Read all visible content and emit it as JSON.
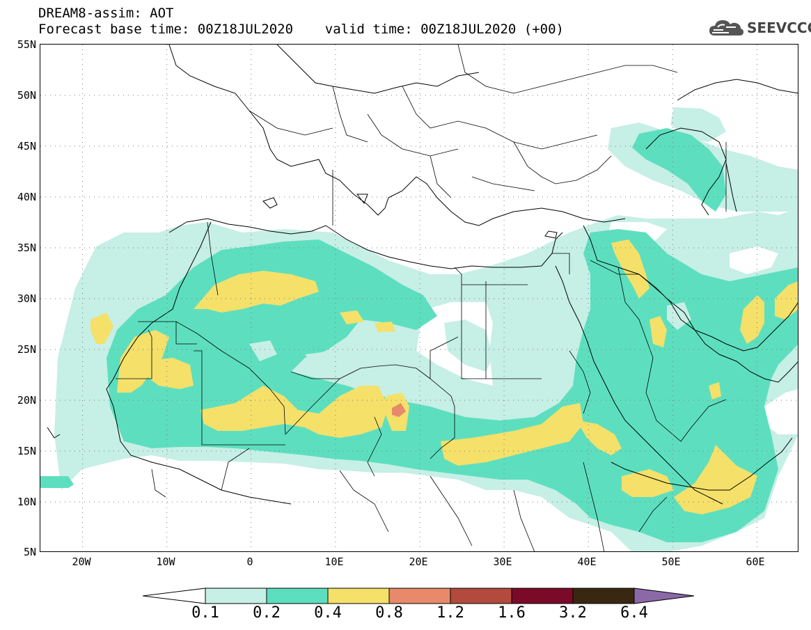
{
  "header": {
    "title_line_1": "DREAM8-assim: AOT",
    "title_line_2": "Forecast base time: 00Z18JUL2020    valid time: 00Z18JUL2020 (+00)"
  },
  "logo": {
    "text": "SEEVCCC",
    "icon": "cloud-icon"
  },
  "map": {
    "lat_labels": [
      "55N",
      "50N",
      "45N",
      "40N",
      "35N",
      "30N",
      "25N",
      "20N",
      "15N",
      "10N",
      "5N"
    ],
    "lon_labels": [
      "20W",
      "10W",
      "0",
      "10E",
      "20E",
      "30E",
      "40E",
      "50E",
      "60E"
    ],
    "lat_range": [
      5,
      55
    ],
    "lon_range": [
      -25,
      65
    ],
    "grid": "dotted"
  },
  "colorbar": {
    "labels": [
      "0.1",
      "0.2",
      "0.4",
      "0.8",
      "1.2",
      "1.6",
      "3.2",
      "6.4"
    ],
    "colors": [
      "#ffffff",
      "#c6efe6",
      "#5ddfbf",
      "#f5e06a",
      "#e7896a",
      "#b34a3e",
      "#7a0a28",
      "#3a2712",
      "#8b69a6"
    ]
  },
  "palette": {
    "level_0_1": "#c6efe6",
    "level_0_2": "#5ddfbf",
    "level_0_4": "#f5e06a",
    "level_0_8": "#e7896a"
  }
}
